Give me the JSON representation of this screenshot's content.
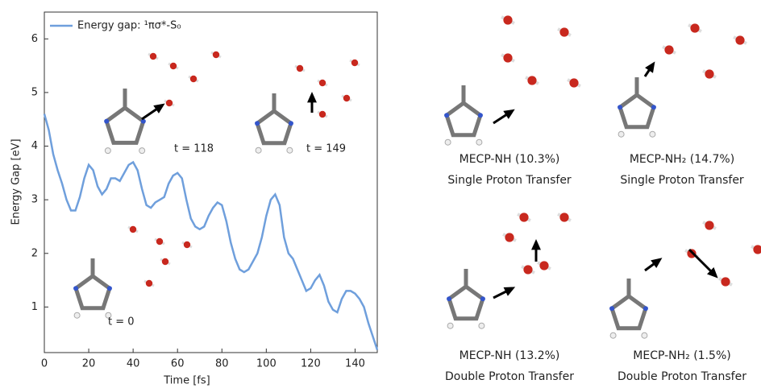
{
  "chart_data": {
    "type": "line",
    "xlabel": "Time [fs]",
    "ylabel": "Energy Gap [eV]",
    "x": [
      0,
      2,
      4,
      6,
      8,
      10,
      12,
      14,
      16,
      18,
      20,
      22,
      24,
      26,
      28,
      30,
      32,
      34,
      36,
      38,
      40,
      42,
      44,
      46,
      48,
      50,
      52,
      54,
      56,
      58,
      60,
      62,
      64,
      66,
      68,
      70,
      72,
      74,
      76,
      78,
      80,
      82,
      84,
      86,
      88,
      90,
      92,
      94,
      96,
      98,
      100,
      102,
      104,
      106,
      108,
      110,
      112,
      114,
      116,
      118,
      120,
      122,
      124,
      126,
      128,
      130,
      132,
      134,
      136,
      138,
      140,
      142,
      144,
      146,
      148,
      150
    ],
    "series": [
      {
        "name": "Energy gap: ¹πσ*-S₀",
        "color": "#6f9fdc",
        "values": [
          4.6,
          4.3,
          3.85,
          3.55,
          3.3,
          3.0,
          2.8,
          2.8,
          3.05,
          3.4,
          3.65,
          3.55,
          3.25,
          3.1,
          3.2,
          3.4,
          3.4,
          3.35,
          3.5,
          3.65,
          3.7,
          3.55,
          3.2,
          2.9,
          2.85,
          2.95,
          3.0,
          3.05,
          3.3,
          3.45,
          3.5,
          3.4,
          3.0,
          2.65,
          2.5,
          2.45,
          2.5,
          2.7,
          2.85,
          2.95,
          2.9,
          2.6,
          2.2,
          1.9,
          1.7,
          1.65,
          1.7,
          1.85,
          2.0,
          2.3,
          2.7,
          3.0,
          3.1,
          2.9,
          2.3,
          2.0,
          1.9,
          1.7,
          1.5,
          1.3,
          1.35,
          1.5,
          1.6,
          1.4,
          1.1,
          0.95,
          0.9,
          1.15,
          1.3,
          1.3,
          1.25,
          1.15,
          1.0,
          0.7,
          0.45,
          0.2
        ]
      }
    ],
    "xlim": [
      0,
      150
    ],
    "ylim": [
      0.15,
      6.5
    ],
    "xticks": [
      0,
      20,
      40,
      60,
      80,
      100,
      120,
      140
    ],
    "yticks": [
      1,
      2,
      3,
      4,
      5,
      6
    ],
    "annotations": [
      "t = 118",
      "t = 149",
      "t = 0"
    ]
  },
  "panels": [
    {
      "label": "MECP-NH (10.3%)",
      "subtitle": "Single Proton Transfer"
    },
    {
      "label": "MECP-NH₂ (14.7%)",
      "subtitle": "Single Proton Transfer"
    },
    {
      "label": "MECP-NH (13.2%)",
      "subtitle": "Double Proton Transfer"
    },
    {
      "label": "MECP-NH₂ (1.5%)",
      "subtitle": "Double Proton Transfer"
    }
  ]
}
